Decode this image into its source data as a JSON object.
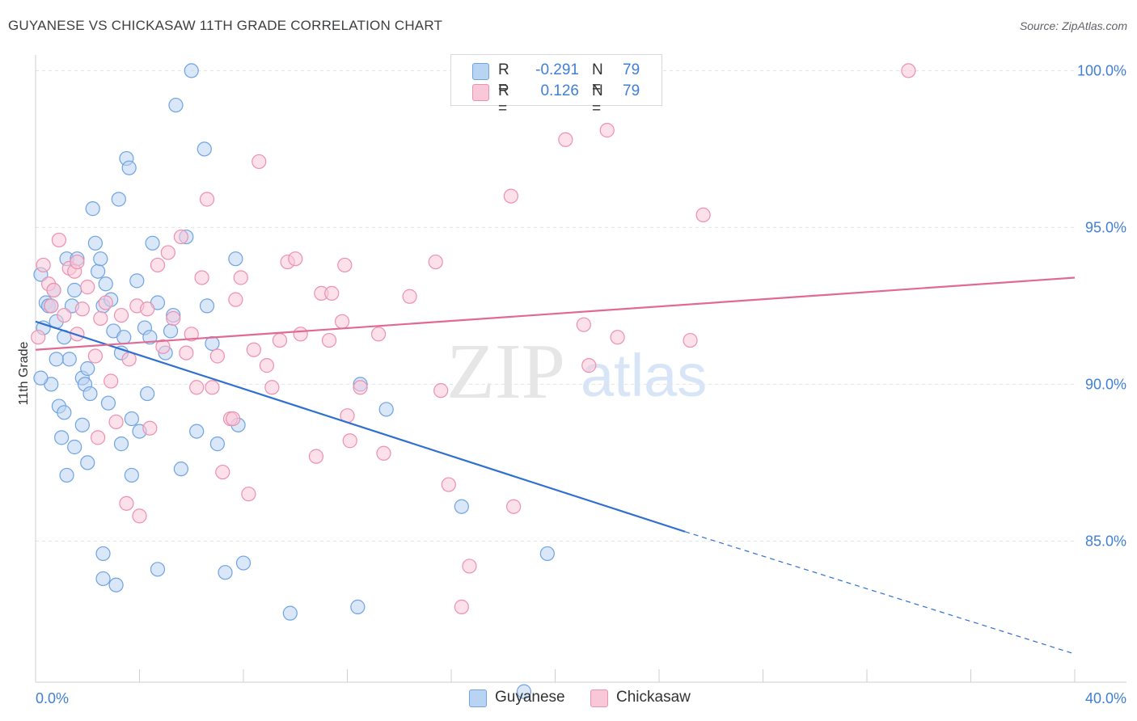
{
  "title": "GUYANESE VS CHICKASAW 11TH GRADE CORRELATION CHART",
  "source": "Source: ZipAtlas.com",
  "watermark": {
    "zip": "ZIP",
    "atlas": "atlas"
  },
  "legend": {
    "rows": [
      {
        "r_label": "R =",
        "r_value": "-0.291",
        "n_label": "N =",
        "n_value": "79",
        "color": "#b9d3f3",
        "border": "#6fa3e3"
      },
      {
        "r_label": "R =",
        "r_value": "0.126",
        "n_label": "N =",
        "n_value": "79",
        "color": "#f9c8d8",
        "border": "#ee8fae"
      }
    ]
  },
  "bottom_legend": [
    {
      "label": "Guyanese",
      "color": "#b9d3f3",
      "border": "#6fa3e3"
    },
    {
      "label": "Chickasaw",
      "color": "#f9c8d8",
      "border": "#ee8fae"
    }
  ],
  "chart_data": {
    "type": "scatter",
    "title": "GUYANESE VS CHICKASAW 11TH GRADE CORRELATION CHART",
    "xlabel": "",
    "ylabel": "11th Grade",
    "x_tick_labels": [
      "0.0%",
      "40.0%"
    ],
    "y_tick_labels": [
      "100.0%",
      "95.0%",
      "90.0%",
      "85.0%"
    ],
    "y_ticks": [
      100,
      95,
      90,
      85
    ],
    "xlim": [
      0,
      40
    ],
    "ylim": [
      80.5,
      100.5
    ],
    "grid": true,
    "colors": {
      "guyanese_fill": "#b9d3f3",
      "guyanese_edge": "#6fa3e3",
      "guyanese_line": "#2f6fcf",
      "chickasaw_fill": "#f9c8d8",
      "chickasaw_edge": "#ee8fae",
      "chickasaw_line": "#e06a94"
    },
    "series": [
      {
        "name": "Guyanese",
        "trend": {
          "x0": 0,
          "y0": 92.0,
          "x1": 25.0,
          "y1": 85.3,
          "dash_to_x": 40.0,
          "dash_to_y": 81.4
        },
        "points": [
          [
            0.3,
            91.8
          ],
          [
            0.4,
            92.6
          ],
          [
            0.5,
            92.5
          ],
          [
            0.6,
            92.5
          ],
          [
            0.2,
            93.5
          ],
          [
            0.7,
            93.0
          ],
          [
            0.8,
            92.0
          ],
          [
            0.6,
            90.0
          ],
          [
            0.9,
            89.3
          ],
          [
            1.0,
            88.3
          ],
          [
            1.1,
            91.5
          ],
          [
            1.2,
            94.0
          ],
          [
            1.3,
            90.8
          ],
          [
            1.4,
            92.5
          ],
          [
            1.5,
            93.0
          ],
          [
            1.6,
            94.0
          ],
          [
            1.5,
            88.0
          ],
          [
            1.8,
            90.2
          ],
          [
            1.9,
            90.0
          ],
          [
            2.0,
            90.5
          ],
          [
            2.1,
            89.7
          ],
          [
            2.2,
            95.6
          ],
          [
            2.3,
            94.5
          ],
          [
            2.4,
            93.6
          ],
          [
            2.5,
            94.0
          ],
          [
            2.6,
            92.5
          ],
          [
            2.7,
            93.2
          ],
          [
            2.8,
            89.4
          ],
          [
            2.9,
            92.7
          ],
          [
            3.0,
            91.7
          ],
          [
            3.2,
            95.9
          ],
          [
            3.3,
            91.0
          ],
          [
            3.4,
            91.5
          ],
          [
            3.5,
            97.2
          ],
          [
            3.6,
            96.9
          ],
          [
            3.7,
            88.9
          ],
          [
            3.9,
            93.3
          ],
          [
            4.0,
            88.5
          ],
          [
            4.2,
            91.8
          ],
          [
            4.3,
            89.7
          ],
          [
            4.4,
            91.5
          ],
          [
            4.5,
            94.5
          ],
          [
            4.7,
            92.6
          ],
          [
            5.0,
            91.0
          ],
          [
            5.2,
            91.7
          ],
          [
            5.3,
            92.2
          ],
          [
            5.4,
            98.9
          ],
          [
            5.6,
            87.3
          ],
          [
            5.8,
            94.7
          ],
          [
            6.0,
            100.0
          ],
          [
            6.2,
            88.5
          ],
          [
            6.5,
            97.5
          ],
          [
            6.6,
            92.5
          ],
          [
            6.8,
            91.3
          ],
          [
            7.0,
            88.1
          ],
          [
            7.3,
            84.0
          ],
          [
            7.7,
            94.0
          ],
          [
            8.0,
            84.3
          ],
          [
            7.8,
            88.7
          ],
          [
            9.8,
            82.7
          ],
          [
            12.4,
            82.9
          ],
          [
            12.5,
            90.0
          ],
          [
            13.5,
            89.2
          ],
          [
            16.4,
            86.1
          ],
          [
            19.7,
            84.6
          ],
          [
            18.8,
            80.2
          ],
          [
            16.5,
            100.0
          ],
          [
            0.2,
            90.2
          ],
          [
            0.8,
            90.8
          ],
          [
            1.2,
            87.1
          ],
          [
            1.8,
            88.7
          ],
          [
            2.0,
            87.5
          ],
          [
            2.6,
            84.6
          ],
          [
            2.6,
            83.8
          ],
          [
            3.1,
            83.6
          ],
          [
            3.7,
            87.1
          ],
          [
            4.7,
            84.1
          ],
          [
            3.3,
            88.1
          ],
          [
            1.1,
            89.1
          ]
        ]
      },
      {
        "name": "Chickasaw",
        "trend": {
          "x0": 0,
          "y0": 91.1,
          "x1": 40.0,
          "y1": 93.4
        },
        "points": [
          [
            0.1,
            91.5
          ],
          [
            0.3,
            93.8
          ],
          [
            0.5,
            93.2
          ],
          [
            0.7,
            93.0
          ],
          [
            0.9,
            94.6
          ],
          [
            1.1,
            92.2
          ],
          [
            1.3,
            93.7
          ],
          [
            1.5,
            93.6
          ],
          [
            1.6,
            93.9
          ],
          [
            1.8,
            92.4
          ],
          [
            2.0,
            93.1
          ],
          [
            2.3,
            90.9
          ],
          [
            2.4,
            88.3
          ],
          [
            2.5,
            92.1
          ],
          [
            2.7,
            92.6
          ],
          [
            2.9,
            90.1
          ],
          [
            3.1,
            88.8
          ],
          [
            3.3,
            92.2
          ],
          [
            3.5,
            86.2
          ],
          [
            3.6,
            90.8
          ],
          [
            3.9,
            92.5
          ],
          [
            4.0,
            85.8
          ],
          [
            4.3,
            92.4
          ],
          [
            4.4,
            88.6
          ],
          [
            4.7,
            93.8
          ],
          [
            4.9,
            91.2
          ],
          [
            5.1,
            94.2
          ],
          [
            5.3,
            92.1
          ],
          [
            5.6,
            94.7
          ],
          [
            5.8,
            91.0
          ],
          [
            6.0,
            91.6
          ],
          [
            6.2,
            89.9
          ],
          [
            6.4,
            93.4
          ],
          [
            6.6,
            95.9
          ],
          [
            6.8,
            89.9
          ],
          [
            7.0,
            90.9
          ],
          [
            7.2,
            87.2
          ],
          [
            7.5,
            88.9
          ],
          [
            7.7,
            92.7
          ],
          [
            7.9,
            93.4
          ],
          [
            8.2,
            86.5
          ],
          [
            8.4,
            91.1
          ],
          [
            8.6,
            97.1
          ],
          [
            8.9,
            90.6
          ],
          [
            9.1,
            89.9
          ],
          [
            9.4,
            91.4
          ],
          [
            9.7,
            93.9
          ],
          [
            10.2,
            91.6
          ],
          [
            10.8,
            87.7
          ],
          [
            11.0,
            92.9
          ],
          [
            11.3,
            91.4
          ],
          [
            11.4,
            92.9
          ],
          [
            11.8,
            92.0
          ],
          [
            11.9,
            93.8
          ],
          [
            12.0,
            89.0
          ],
          [
            12.1,
            88.2
          ],
          [
            12.5,
            89.9
          ],
          [
            13.2,
            91.6
          ],
          [
            13.4,
            87.8
          ],
          [
            14.4,
            92.8
          ],
          [
            15.4,
            93.9
          ],
          [
            15.6,
            89.8
          ],
          [
            15.9,
            86.8
          ],
          [
            16.4,
            82.9
          ],
          [
            16.7,
            84.2
          ],
          [
            18.3,
            96.0
          ],
          [
            18.4,
            86.1
          ],
          [
            20.4,
            97.8
          ],
          [
            21.1,
            91.9
          ],
          [
            21.3,
            90.6
          ],
          [
            22.0,
            98.1
          ],
          [
            22.4,
            91.5
          ],
          [
            25.2,
            91.4
          ],
          [
            25.7,
            95.4
          ],
          [
            33.6,
            100.0
          ],
          [
            7.6,
            88.9
          ],
          [
            10.0,
            94.0
          ],
          [
            0.6,
            92.5
          ],
          [
            1.6,
            91.6
          ]
        ]
      }
    ]
  }
}
